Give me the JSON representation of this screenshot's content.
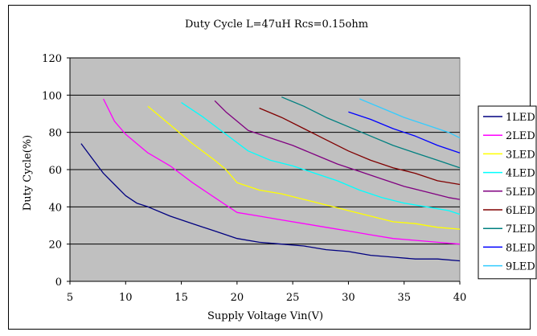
{
  "chart_data": {
    "type": "line",
    "title": "Duty Cycle L=47uH Rcs=0.15ohm",
    "xlabel": "Supply Voltage Vin(V)",
    "ylabel": "Duty Cycle(%)",
    "xlim": [
      5,
      40
    ],
    "ylim": [
      0,
      120
    ],
    "xticks": [
      5,
      10,
      15,
      20,
      25,
      30,
      35,
      40
    ],
    "yticks": [
      0,
      20,
      40,
      60,
      80,
      100,
      120
    ],
    "grid": "horizontal",
    "legend": "right",
    "plot_background": "#C0C0C0",
    "series": [
      {
        "name": "1LED",
        "color": "#000080",
        "points": [
          [
            6,
            74
          ],
          [
            7,
            66
          ],
          [
            8,
            58
          ],
          [
            9,
            52
          ],
          [
            10,
            46
          ],
          [
            11,
            42
          ],
          [
            12,
            40
          ],
          [
            14,
            35
          ],
          [
            16,
            31
          ],
          [
            18,
            27
          ],
          [
            20,
            23
          ],
          [
            22,
            21
          ],
          [
            24,
            20
          ],
          [
            26,
            19
          ],
          [
            28,
            17
          ],
          [
            30,
            16
          ],
          [
            32,
            14
          ],
          [
            34,
            13
          ],
          [
            36,
            12
          ],
          [
            38,
            12
          ],
          [
            40,
            11
          ]
        ]
      },
      {
        "name": "2LED",
        "color": "#FF00FF",
        "points": [
          [
            8,
            98
          ],
          [
            9,
            86
          ],
          [
            10,
            79
          ],
          [
            11,
            74
          ],
          [
            12,
            69
          ],
          [
            14,
            62
          ],
          [
            16,
            53
          ],
          [
            18,
            45
          ],
          [
            20,
            37
          ],
          [
            22,
            35
          ],
          [
            24,
            33
          ],
          [
            26,
            31
          ],
          [
            28,
            29
          ],
          [
            30,
            27
          ],
          [
            32,
            25
          ],
          [
            34,
            23
          ],
          [
            36,
            22
          ],
          [
            38,
            21
          ],
          [
            40,
            20
          ]
        ]
      },
      {
        "name": "3LED",
        "color": "#FFFF00",
        "points": [
          [
            12,
            94
          ],
          [
            14,
            84
          ],
          [
            16,
            74
          ],
          [
            18,
            65
          ],
          [
            19,
            60
          ],
          [
            20,
            53
          ],
          [
            22,
            49
          ],
          [
            24,
            47
          ],
          [
            26,
            44
          ],
          [
            28,
            41
          ],
          [
            30,
            38
          ],
          [
            32,
            35
          ],
          [
            34,
            32
          ],
          [
            36,
            31
          ],
          [
            38,
            29
          ],
          [
            40,
            28
          ]
        ]
      },
      {
        "name": "4LED",
        "color": "#00FFFF",
        "points": [
          [
            15,
            96
          ],
          [
            17,
            88
          ],
          [
            19,
            79
          ],
          [
            21,
            70
          ],
          [
            23,
            65
          ],
          [
            25,
            62
          ],
          [
            27,
            58
          ],
          [
            29,
            54
          ],
          [
            31,
            49
          ],
          [
            33,
            45
          ],
          [
            35,
            42
          ],
          [
            37,
            40
          ],
          [
            39,
            38
          ],
          [
            40,
            36
          ]
        ]
      },
      {
        "name": "5LED",
        "color": "#800080",
        "points": [
          [
            18,
            97
          ],
          [
            19,
            91
          ],
          [
            20,
            86
          ],
          [
            21,
            81
          ],
          [
            23,
            77
          ],
          [
            25,
            73
          ],
          [
            27,
            68
          ],
          [
            29,
            63
          ],
          [
            31,
            59
          ],
          [
            33,
            55
          ],
          [
            35,
            51
          ],
          [
            37,
            48
          ],
          [
            39,
            45
          ],
          [
            40,
            44
          ]
        ]
      },
      {
        "name": "6LED",
        "color": "#800000",
        "points": [
          [
            22,
            93
          ],
          [
            24,
            88
          ],
          [
            26,
            82
          ],
          [
            28,
            76
          ],
          [
            30,
            70
          ],
          [
            32,
            65
          ],
          [
            34,
            61
          ],
          [
            36,
            58
          ],
          [
            38,
            54
          ],
          [
            40,
            52
          ]
        ]
      },
      {
        "name": "7LED",
        "color": "#008080",
        "points": [
          [
            24,
            99
          ],
          [
            26,
            94
          ],
          [
            28,
            88
          ],
          [
            30,
            83
          ],
          [
            32,
            78
          ],
          [
            34,
            73
          ],
          [
            36,
            69
          ],
          [
            38,
            65
          ],
          [
            40,
            61
          ]
        ]
      },
      {
        "name": "8LED",
        "color": "#0000FF",
        "points": [
          [
            30,
            91
          ],
          [
            32,
            87
          ],
          [
            34,
            82
          ],
          [
            36,
            78
          ],
          [
            38,
            73
          ],
          [
            40,
            69
          ]
        ]
      },
      {
        "name": "9LED",
        "color": "#33CCFF",
        "points": [
          [
            31,
            98
          ],
          [
            33,
            93
          ],
          [
            35,
            88
          ],
          [
            37,
            84
          ],
          [
            39,
            80
          ],
          [
            40,
            77
          ]
        ]
      }
    ]
  }
}
